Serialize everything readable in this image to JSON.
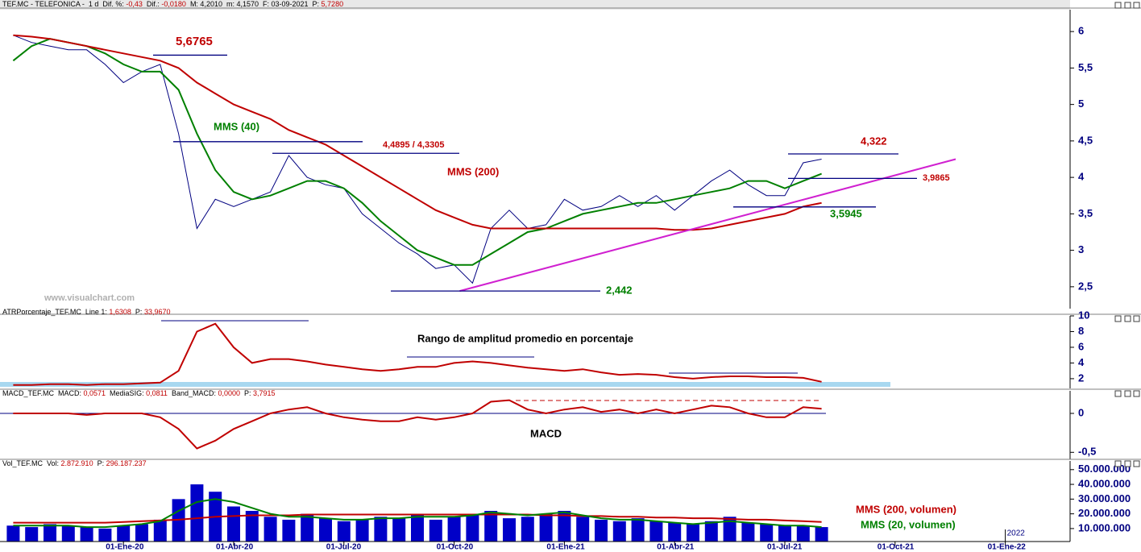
{
  "header": {
    "parts": [
      "TEF.MC - TELEFONICA -  1 d  Dif. %: ",
      "-0,43",
      "  Dif.: ",
      "-0,0180",
      "  M: 4,2010  m: 4,1570  F: 03-09-2021  P: ",
      "5,7280"
    ]
  },
  "watermark": "www.visualchart.com",
  "chart_data": [
    {
      "type": "line",
      "ylim": [
        2.2,
        6.3
      ],
      "yticks": [
        {
          "value": 2.5,
          "label": "2,5"
        },
        3,
        {
          "value": 3.5,
          "label": "3,5"
        },
        4,
        {
          "value": 4.5,
          "label": "4,5"
        },
        5,
        {
          "value": 5.5,
          "label": "5,5"
        },
        6
      ],
      "series": [
        {
          "color": "#000080",
          "values": [
            5.95,
            5.85,
            5.8,
            5.75,
            5.75,
            5.55,
            5.3,
            5.45,
            5.55,
            4.6,
            3.3,
            3.7,
            3.6,
            3.7,
            3.8,
            4.3,
            4.0,
            3.9,
            3.85,
            3.5,
            3.3,
            3.1,
            2.95,
            2.75,
            2.8,
            2.55,
            3.3,
            3.55,
            3.3,
            3.35,
            3.7,
            3.55,
            3.6,
            3.75,
            3.6,
            3.75,
            3.55,
            3.75,
            3.95,
            4.1,
            3.9,
            3.75,
            3.75,
            4.2,
            4.25,
            null,
            null,
            null,
            null,
            null,
            null,
            null,
            null,
            null,
            null,
            null,
            null,
            null
          ]
        },
        {
          "name": "MMS (40)",
          "color": "#008000",
          "values": [
            5.6,
            5.8,
            5.9,
            5.85,
            5.8,
            5.7,
            5.55,
            5.45,
            5.45,
            5.2,
            4.6,
            4.1,
            3.8,
            3.7,
            3.75,
            3.85,
            3.95,
            3.95,
            3.85,
            3.65,
            3.4,
            3.2,
            3.0,
            2.9,
            2.8,
            2.8,
            2.95,
            3.1,
            3.25,
            3.3,
            3.4,
            3.5,
            3.55,
            3.6,
            3.65,
            3.65,
            3.7,
            3.75,
            3.8,
            3.85,
            3.95,
            3.95,
            3.85,
            3.95,
            4.05,
            null,
            null,
            null,
            null,
            null,
            null,
            null,
            null,
            null,
            null,
            null,
            null,
            null
          ]
        },
        {
          "name": "MMS (200)",
          "color": "#c00000",
          "values": [
            5.95,
            5.93,
            5.9,
            5.85,
            5.8,
            5.75,
            5.7,
            5.65,
            5.6,
            5.5,
            5.3,
            5.15,
            5.0,
            4.9,
            4.8,
            4.65,
            4.55,
            4.45,
            4.3,
            4.15,
            4.0,
            3.85,
            3.7,
            3.55,
            3.45,
            3.35,
            3.3,
            3.3,
            3.3,
            3.3,
            3.3,
            3.3,
            3.3,
            3.3,
            3.3,
            3.3,
            3.28,
            3.28,
            3.3,
            3.35,
            3.4,
            3.45,
            3.5,
            3.6,
            3.65,
            null,
            null,
            null,
            null,
            null,
            null,
            null,
            null,
            null,
            null,
            null,
            null,
            null
          ]
        }
      ],
      "trendline": {
        "color": "#d020d0",
        "start": 2.442,
        "end": 4.25
      },
      "levels": [
        {
          "label": "5,6765",
          "values": [
            5.6765
          ],
          "color": "#c00000"
        },
        {
          "label": "4,4895 / 4,3305",
          "values": [
            4.4895,
            4.3305
          ],
          "color": "#c00000"
        },
        {
          "label": "4,322",
          "values": [
            4.322
          ],
          "color": "#c00000"
        },
        {
          "label": "3,9865",
          "values": [
            3.9865
          ],
          "color": "#c00000"
        },
        {
          "label": "3,5945",
          "values": [
            3.5945
          ],
          "color": "#008000"
        },
        {
          "label": "2,442",
          "values": [
            2.442
          ],
          "color": "#008000"
        }
      ]
    },
    {
      "type": "line",
      "title_parts": [
        "ATRPorcentaje_TEF.MC  Line 1: ",
        "1,6308",
        "  P: ",
        "33,9670"
      ],
      "annotation": "Rango de amplitud promedio en porcentaje",
      "ylim": [
        0.76,
        10
      ],
      "yticks": [
        2,
        4,
        6,
        8,
        10
      ],
      "series": [
        {
          "color": "#c00000",
          "values": [
            1.2,
            1.2,
            1.3,
            1.3,
            1.2,
            1.3,
            1.3,
            1.4,
            1.5,
            3,
            8,
            9,
            6,
            4,
            4.5,
            4.5,
            4.2,
            3.8,
            3.5,
            3.2,
            3.0,
            3.2,
            3.5,
            3.5,
            4,
            4.2,
            4,
            3.7,
            3.4,
            3.2,
            3,
            3.2,
            2.8,
            2.5,
            2.6,
            2.5,
            2.2,
            2.0,
            2.2,
            2.3,
            2.3,
            2.2,
            2.2,
            2.1,
            1.6,
            null,
            null,
            null,
            null,
            null,
            null,
            null,
            null,
            null,
            null,
            null,
            null,
            null
          ]
        }
      ]
    },
    {
      "type": "line",
      "title_parts": [
        "MACD_TEF.MC  MACD: ",
        "0,0571",
        "  MediaSIG: ",
        "0,0811",
        "  Band_MACD: ",
        "0,0000",
        "  P: ",
        "3,7915"
      ],
      "annotation": "MACD",
      "ylim": [
        -0.59,
        0.29
      ],
      "yticks": [
        0,
        {
          "value": -0.5,
          "label": "-0,5"
        }
      ],
      "series": [
        {
          "color": "#c00000",
          "values": [
            0,
            0,
            0,
            0,
            -0.02,
            0,
            0,
            0,
            -0.05,
            -0.2,
            -0.45,
            -0.35,
            -0.2,
            -0.1,
            0,
            0.05,
            0.08,
            0,
            -0.05,
            -0.08,
            -0.1,
            -0.1,
            -0.05,
            -0.08,
            -0.05,
            0,
            0.15,
            0.17,
            0.05,
            0,
            0.05,
            0.08,
            0.02,
            0.05,
            0,
            0.05,
            0,
            0.05,
            0.1,
            0.08,
            0,
            -0.05,
            -0.05,
            0.08,
            0.06,
            null,
            null,
            null,
            null,
            null,
            null,
            null,
            null,
            null,
            null,
            null,
            null,
            null
          ]
        }
      ]
    },
    {
      "type": "bar",
      "title_parts": [
        "Vol_TEF.MC  Vol: ",
        "2.872.910",
        "  P: ",
        "296.187.237"
      ],
      "year_label": "2022",
      "categories": [
        null,
        null,
        null,
        null,
        null,
        null,
        "01-Ene-20",
        null,
        null,
        null,
        null,
        null,
        "01-Abr-20",
        null,
        null,
        null,
        null,
        null,
        "01-Jul-20",
        null,
        null,
        null,
        null,
        null,
        "01-Oct-20",
        null,
        null,
        null,
        null,
        null,
        "01-Ene-21",
        null,
        null,
        null,
        null,
        null,
        "01-Abr-21",
        null,
        null,
        null,
        null,
        null,
        "01-Jul-21",
        null,
        null,
        null,
        null,
        null,
        "01-Oct-21",
        null,
        null,
        null,
        null,
        null,
        "01-Ene-22",
        null,
        null,
        null
      ],
      "ylim": [
        1200000,
        55900000
      ],
      "yticks": [
        {
          "value": 10000000,
          "label": "10.000.000"
        },
        {
          "value": 20000000,
          "label": "20.000.000"
        },
        {
          "value": 30000000,
          "label": "30.000.000"
        },
        {
          "value": 40000000,
          "label": "40.000.000"
        },
        {
          "value": 50000000,
          "label": "50.000.000"
        }
      ],
      "series": [
        {
          "color": "#0000c8",
          "values": [
            12000000,
            11000000,
            13000000,
            12000000,
            11000000,
            10000000,
            12000000,
            13000000,
            16000000,
            30000000,
            40000000,
            35000000,
            25000000,
            22000000,
            18000000,
            16000000,
            20000000,
            17000000,
            15000000,
            16000000,
            18000000,
            17000000,
            20000000,
            16000000,
            18000000,
            19000000,
            22000000,
            17000000,
            18000000,
            20000000,
            22000000,
            18000000,
            16000000,
            15000000,
            17000000,
            15000000,
            14000000,
            13000000,
            15000000,
            18000000,
            14000000,
            13000000,
            12000000,
            12000000,
            11000000,
            null,
            null,
            null,
            null,
            null,
            null,
            null,
            null,
            null,
            null,
            null,
            null,
            null
          ]
        },
        {
          "name": "MMS (200, volumen)",
          "type": "line",
          "color": "#c00000",
          "values": [
            14000000,
            14000000,
            14000000,
            14000000,
            14000000,
            14000000,
            14500000,
            15000000,
            15500000,
            16000000,
            17000000,
            18000000,
            18500000,
            19000000,
            19000000,
            19000000,
            19500000,
            19500000,
            19500000,
            19500000,
            19500000,
            19500000,
            19500000,
            19500000,
            19500000,
            19500000,
            19500000,
            19500000,
            19500000,
            19000000,
            19000000,
            18500000,
            18500000,
            18000000,
            18000000,
            17500000,
            17500000,
            17000000,
            17000000,
            16500000,
            16000000,
            16000000,
            15500000,
            15000000,
            14500000,
            null,
            null,
            null,
            null,
            null,
            null,
            null,
            null,
            null,
            null,
            null,
            null,
            null
          ]
        },
        {
          "name": "MMS (20, volumen)",
          "type": "line",
          "color": "#008000",
          "values": [
            12000000,
            12000000,
            12000000,
            12000000,
            11000000,
            11000000,
            12000000,
            13000000,
            15000000,
            22000000,
            28000000,
            30000000,
            28000000,
            24000000,
            20000000,
            18000000,
            18000000,
            17000000,
            16000000,
            16000000,
            17000000,
            17000000,
            18000000,
            18000000,
            18000000,
            19000000,
            21000000,
            20000000,
            19000000,
            20000000,
            21000000,
            19000000,
            17000000,
            16000000,
            16000000,
            15000000,
            14000000,
            13000000,
            14000000,
            15000000,
            14000000,
            13000000,
            12000000,
            12000000,
            11000000,
            null,
            null,
            null,
            null,
            null,
            null,
            null,
            null,
            null,
            null,
            null,
            null,
            null
          ]
        }
      ]
    }
  ]
}
